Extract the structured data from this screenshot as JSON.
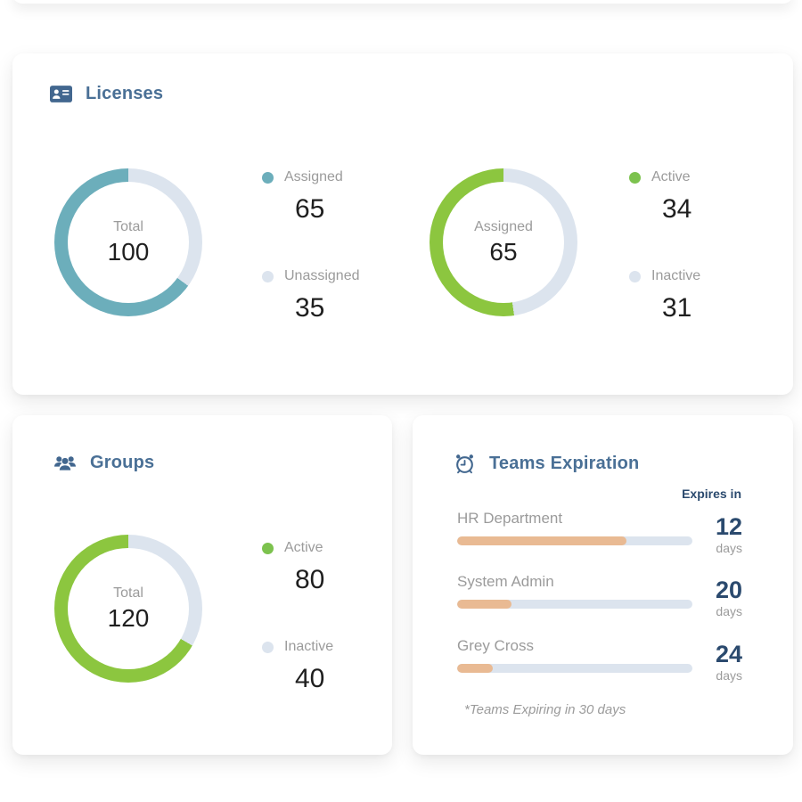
{
  "colors": {
    "header_blue": "#4a7096",
    "icon_blue": "#42678f",
    "navy": "#2b4a6e",
    "label_gray": "#9b9b9b",
    "value_black": "#1f1f1f",
    "track_gray": "#dce4ee",
    "teal": "#6caebb",
    "lime_green": "#8cc63f",
    "dot_green": "#7cc24e",
    "salmon": "#e9ba93"
  },
  "licenses": {
    "title": "Licenses",
    "donut_total": {
      "center_label": "Total",
      "center_value": "100",
      "segments": [
        {
          "label": "Assigned",
          "value": 65,
          "color": "#6caebb",
          "dot_color": "#6caebb"
        },
        {
          "label": "Unassigned",
          "value": 35,
          "color": "#dce4ee",
          "dot_color": "#dce4ee"
        }
      ]
    },
    "donut_assigned": {
      "center_label": "Assigned",
      "center_value": "65",
      "segments": [
        {
          "label": "Active",
          "value": 34,
          "color": "#8cc63f",
          "dot_color": "#7cc24e"
        },
        {
          "label": "Inactive",
          "value": 31,
          "color": "#dce4ee",
          "dot_color": "#dce4ee"
        }
      ]
    }
  },
  "groups": {
    "title": "Groups",
    "donut": {
      "center_label": "Total",
      "center_value": "120",
      "segments": [
        {
          "label": "Active",
          "value": 80,
          "color": "#8cc63f",
          "dot_color": "#7cc24e"
        },
        {
          "label": "Inactive",
          "value": 40,
          "color": "#dce4ee",
          "dot_color": "#dce4ee"
        }
      ]
    }
  },
  "teams": {
    "title": "Teams Expiration",
    "column_header": "Expires in",
    "rows": [
      {
        "name": "HR Department",
        "days": 12,
        "unit": "days",
        "progress_pct": 72
      },
      {
        "name": "System Admin",
        "days": 20,
        "unit": "days",
        "progress_pct": 23
      },
      {
        "name": "Grey Cross",
        "days": 24,
        "unit": "days",
        "progress_pct": 15
      }
    ],
    "footnote": "*Teams Expiring in 30 days"
  },
  "chart_data": [
    {
      "type": "pie",
      "title": "Licenses - Total",
      "center_label": "Total",
      "center_value": 100,
      "categories": [
        "Assigned",
        "Unassigned"
      ],
      "values": [
        65,
        35
      ],
      "colors": [
        "#6caebb",
        "#dce4ee"
      ],
      "legend_position": "right",
      "donut": true
    },
    {
      "type": "pie",
      "title": "Licenses - Assigned",
      "center_label": "Assigned",
      "center_value": 65,
      "categories": [
        "Active",
        "Inactive"
      ],
      "values": [
        34,
        31
      ],
      "colors": [
        "#8cc63f",
        "#dce4ee"
      ],
      "legend_position": "right",
      "donut": true
    },
    {
      "type": "pie",
      "title": "Groups",
      "center_label": "Total",
      "center_value": 120,
      "categories": [
        "Active",
        "Inactive"
      ],
      "values": [
        80,
        40
      ],
      "colors": [
        "#8cc63f",
        "#dce4ee"
      ],
      "legend_position": "right",
      "donut": true
    },
    {
      "type": "bar",
      "title": "Teams Expiration",
      "ylabel": "Expires in",
      "categories": [
        "HR Department",
        "System Admin",
        "Grey Cross"
      ],
      "values": [
        12,
        20,
        24
      ],
      "unit": "days",
      "bar_fill_pct": [
        72,
        23,
        15
      ],
      "annotation": "*Teams Expiring in 30 days"
    }
  ]
}
